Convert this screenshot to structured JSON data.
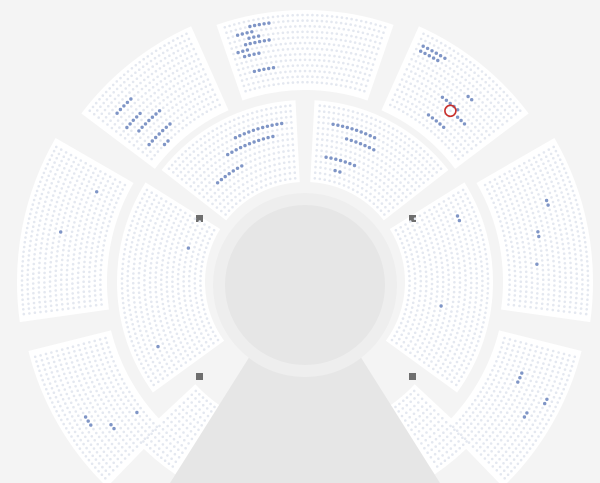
{
  "colors": {
    "background": "#f4f4f4",
    "section": "#ffffff",
    "seat_unavailable": "#e4e8f0",
    "seat_available": "#7f95c6",
    "selected_ring": "#c9302c",
    "stage": "#e6e6e6",
    "stage_apron": "#eeeeee",
    "pillar": "#6e6e6e"
  },
  "sections": [
    {
      "id": "outer-top",
      "available": [
        [
          1,
          5,
          9
        ],
        [
          2,
          2,
          5
        ],
        [
          3,
          4,
          6
        ],
        [
          4,
          3,
          8
        ],
        [
          5,
          1,
          3
        ],
        [
          6,
          2,
          5
        ],
        [
          9,
          3,
          7
        ],
        [
          13,
          9,
          10
        ]
      ]
    },
    {
      "id": "outer-top-right",
      "available": [
        [
          2,
          1,
          6
        ],
        [
          3,
          1,
          5
        ],
        [
          5,
          14,
          15
        ],
        [
          8,
          9,
          13
        ],
        [
          9,
          14,
          16
        ],
        [
          12,
          8,
          12
        ]
      ]
    },
    {
      "id": "outer-top-left",
      "available": [
        [
          4,
          3,
          7
        ],
        [
          7,
          2,
          6
        ],
        [
          9,
          3,
          9
        ],
        [
          12,
          2,
          8
        ],
        [
          14,
          4,
          5
        ]
      ]
    },
    {
      "id": "outer-right",
      "available": [
        [
          5,
          9,
          10
        ],
        [
          8,
          14,
          15
        ],
        [
          9,
          20,
          20
        ],
        [
          12,
          30,
          30
        ]
      ]
    },
    {
      "id": "outer-left",
      "available": [
        [
          6,
          16,
          16
        ],
        [
          10,
          24,
          24
        ]
      ]
    },
    {
      "id": "outer-bottom-right",
      "available": [
        [
          2,
          10,
          11
        ],
        [
          4,
          14,
          15
        ],
        [
          8,
          6,
          8
        ]
      ]
    },
    {
      "id": "outer-bottom-left",
      "available": [
        [
          4,
          10,
          12
        ],
        [
          7,
          6,
          7
        ],
        [
          12,
          5,
          5
        ]
      ]
    },
    {
      "id": "inner-top-right",
      "available": [
        [
          3,
          3,
          12
        ],
        [
          5,
          6,
          12
        ],
        [
          9,
          2,
          8
        ],
        [
          11,
          4,
          5
        ],
        [
          14,
          2,
          3
        ]
      ]
    },
    {
      "id": "inner-top-left",
      "available": [
        [
          3,
          14,
          24
        ],
        [
          5,
          10,
          20
        ],
        [
          8,
          4,
          10
        ],
        [
          12,
          18,
          19
        ],
        [
          14,
          20,
          21
        ]
      ]
    },
    {
      "id": "inner-right",
      "available": [
        [
          3,
          4,
          5
        ],
        [
          8,
          20,
          20
        ]
      ]
    },
    {
      "id": "inner-left",
      "available": [
        [
          4,
          6,
          6
        ],
        [
          11,
          22,
          22
        ]
      ]
    },
    {
      "id": "box-right",
      "available": []
    },
    {
      "id": "box-left",
      "available": []
    }
  ],
  "selected_seat": {
    "section": "outer-top-right",
    "row": 9,
    "seat": 12
  }
}
